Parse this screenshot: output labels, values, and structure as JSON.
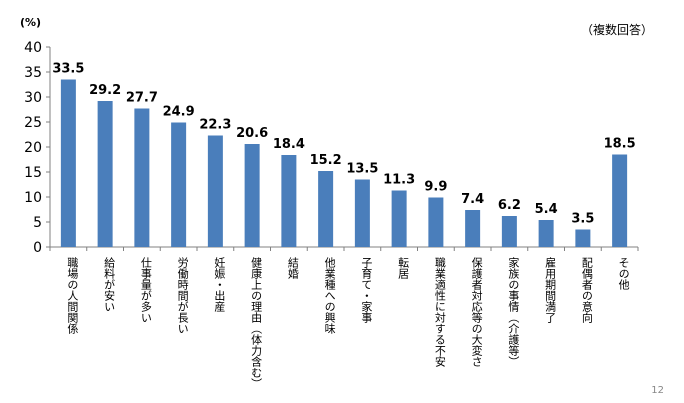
{
  "chart_data": {
    "type": "bar",
    "unit_label": "(%)",
    "note": "（複数回答）",
    "ylim": [
      0,
      40
    ],
    "yticks": [
      "0",
      "5",
      "10",
      "15",
      "20",
      "25",
      "30",
      "35",
      "40"
    ],
    "bar_color": "#4a7ebb",
    "categories": [
      "職場の人間関係",
      "給料が安い",
      "仕事量が多い",
      "労働時間が長い",
      "妊娠・出産",
      "健康上の理由（体力含む）",
      "結婚",
      "他業種への興味",
      "子育て・家事",
      "転居",
      "職業適性に対する不安",
      "保護者対応等の大変さ",
      "家族の事情（介護等）",
      "雇用期間満了",
      "配偶者の意向",
      "その他"
    ],
    "values": [
      33.5,
      29.2,
      27.7,
      24.9,
      22.3,
      20.6,
      18.4,
      15.2,
      13.5,
      11.3,
      9.9,
      7.4,
      6.2,
      5.4,
      3.5,
      18.5
    ],
    "value_labels": [
      "33.5",
      "29.2",
      "27.7",
      "24.9",
      "22.3",
      "20.6",
      "18.4",
      "15.2",
      "13.5",
      "11.3",
      "9.9",
      "7.4",
      "6.2",
      "5.4",
      "3.5",
      "18.5"
    ]
  },
  "page_number": "12"
}
